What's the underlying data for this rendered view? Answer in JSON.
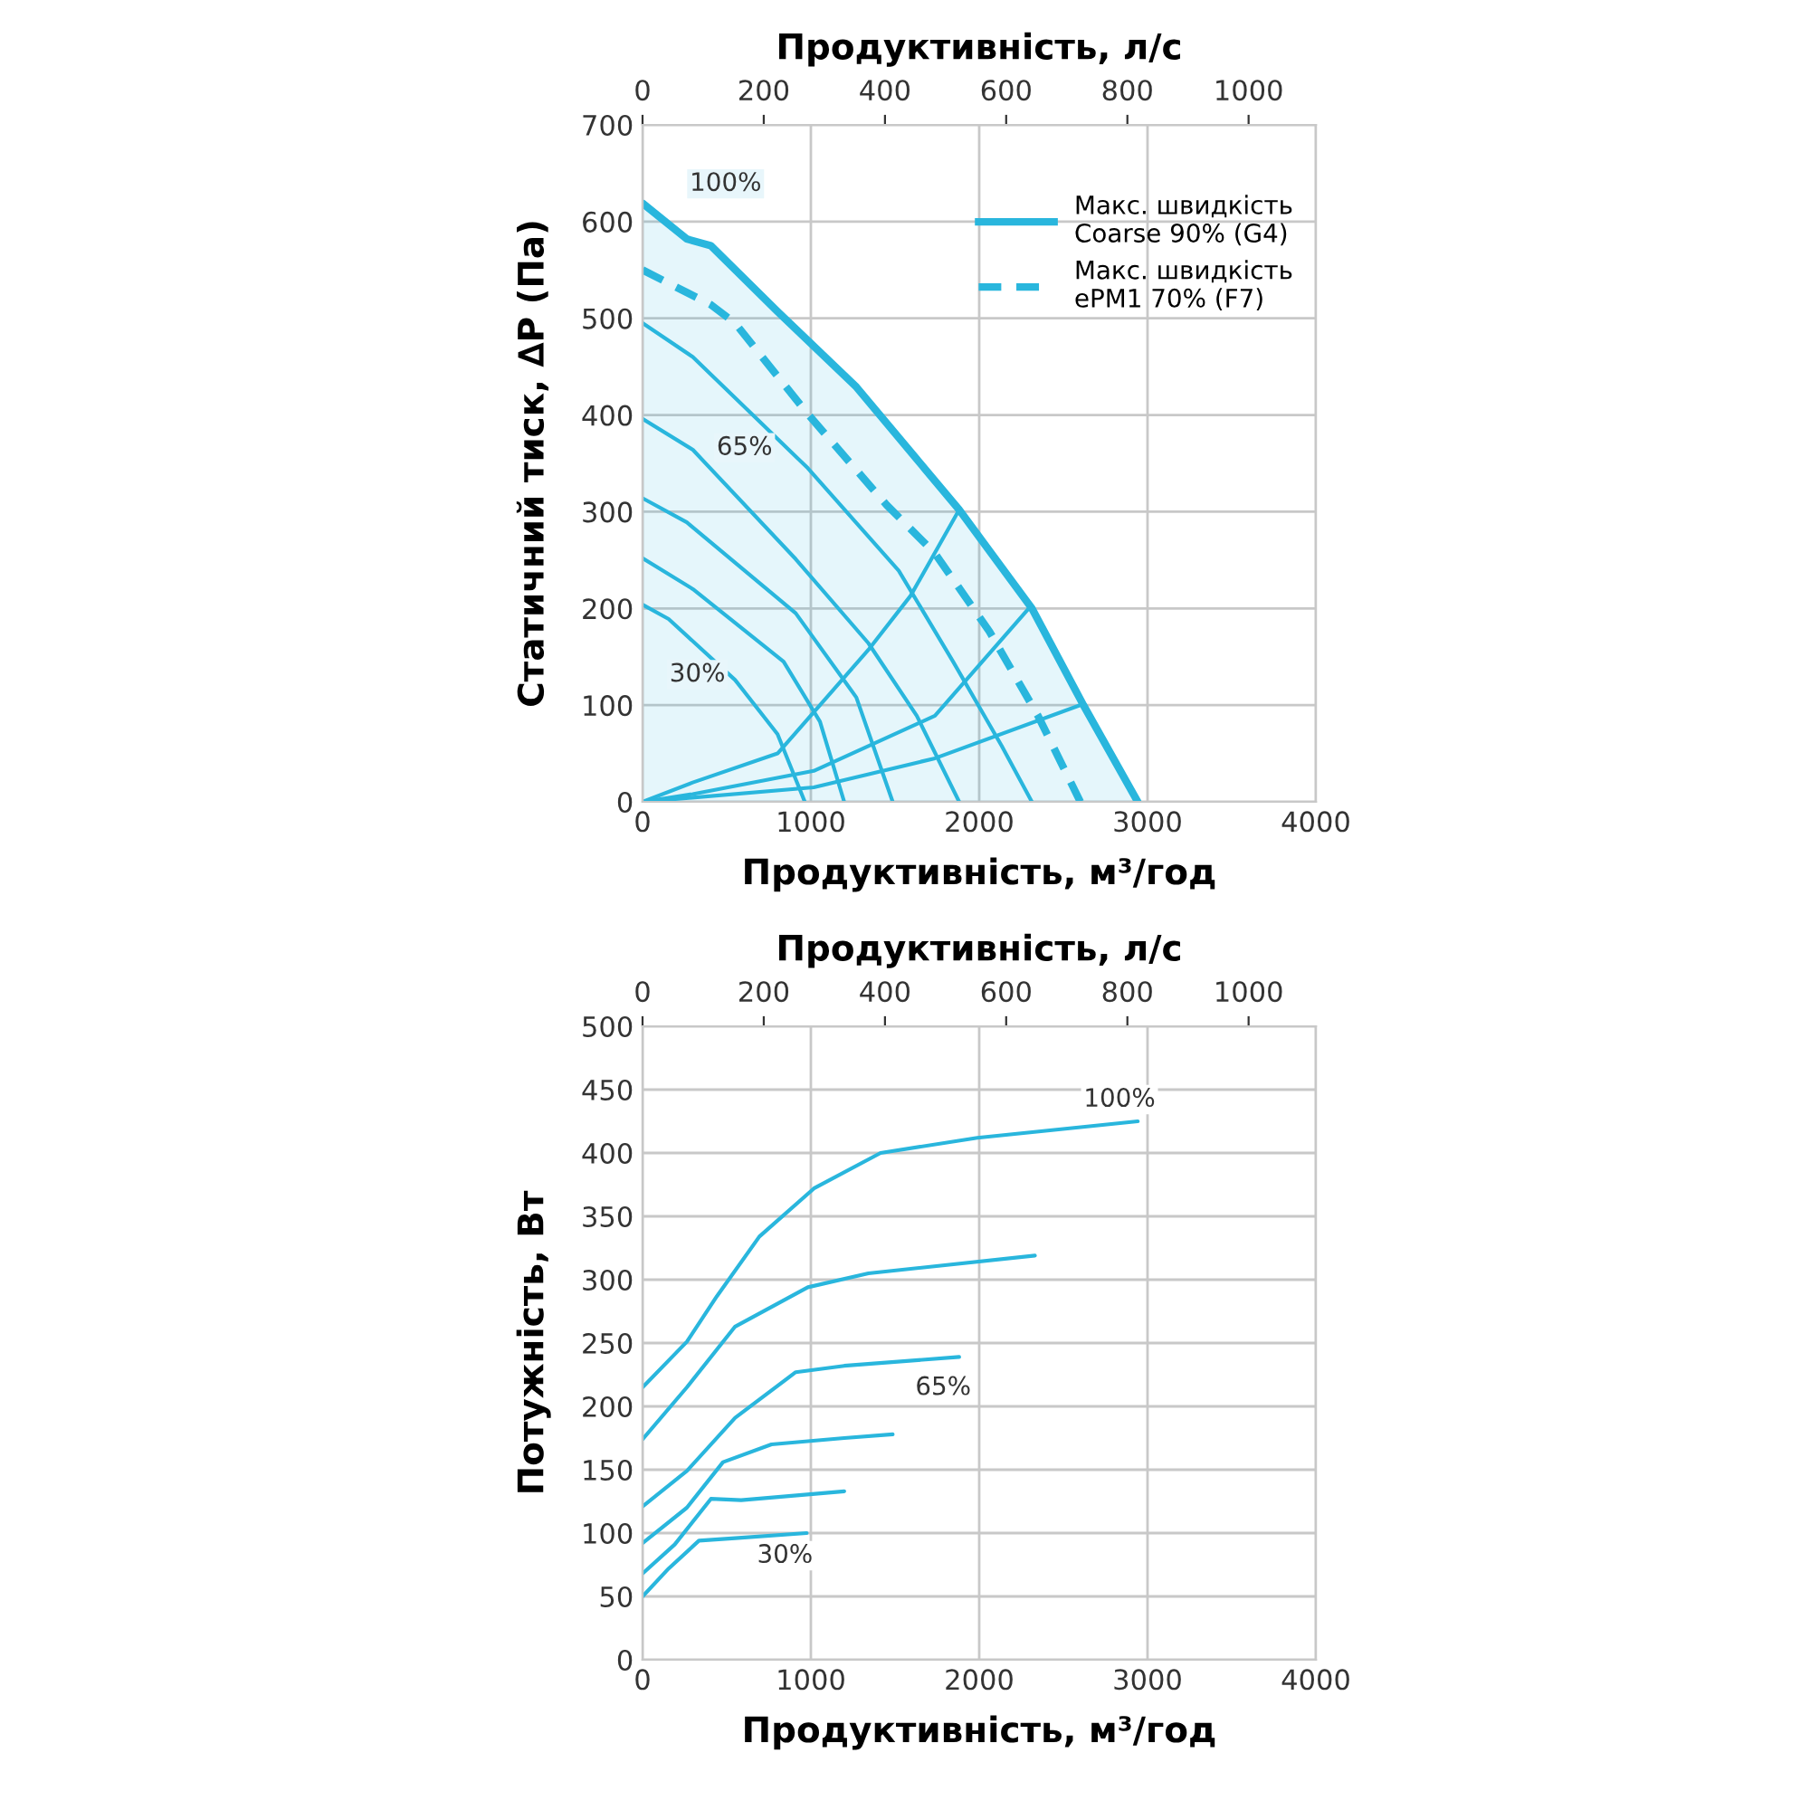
{
  "chart_data": [
    {
      "type": "line",
      "xlabel": "Продуктивність, м³/год",
      "x2label": "Продуктивність, л/с",
      "ylabel": "Статичний тиск, ∆P (Па)",
      "xlim": [
        0,
        4000
      ],
      "xticks": [
        0,
        1000,
        2000,
        3000,
        4000
      ],
      "ylim": [
        0,
        700
      ],
      "yticks": [
        0,
        100,
        200,
        300,
        400,
        500,
        600,
        700
      ],
      "x2lim": [
        0,
        1111
      ],
      "x2ticks": [
        0,
        200,
        400,
        600,
        800,
        1000
      ],
      "grid": true,
      "legend": "top right",
      "marker": "none",
      "series": [
        {
          "name": "Макс. швидкість\nCoarse 90% (G4)",
          "type": "area",
          "color": "#29b6dd",
          "line_style": "solid",
          "x": [
            0,
            263,
            406,
            802,
            1270,
            1881,
            2313,
            2619,
            2942
          ],
          "values": [
            619,
            582,
            575,
            507,
            429,
            302,
            200,
            100,
            0
          ]
        },
        {
          "name": "Макс. швидкість\nePM1 70% (F7)",
          "color": "#29b6dd",
          "line_style": "dashed",
          "x": [
            0,
            406,
            550,
            982,
            1450,
            1737,
            2061,
            2349,
            2601
          ],
          "values": [
            550,
            514,
            495,
            401,
            307,
            257,
            176,
            89,
            0
          ]
        },
        {
          "color": "#29b6dd",
          "x": [
            0,
            299,
            982,
            1522,
            1845,
            2133,
            2313
          ],
          "values": [
            495,
            460,
            345,
            239,
            145,
            58,
            0
          ]
        },
        {
          "color": "#29b6dd",
          "x": [
            0,
            299,
            910,
            1342,
            1629,
            1881
          ],
          "values": [
            396,
            364,
            251,
            164,
            89,
            0
          ]
        },
        {
          "color": "#29b6dd",
          "x": [
            0,
            263,
            910,
            1270,
            1486
          ],
          "values": [
            314,
            289,
            195,
            108,
            0
          ]
        },
        {
          "color": "#29b6dd",
          "x": [
            0,
            299,
            838,
            1054,
            1198
          ],
          "values": [
            252,
            220,
            145,
            83,
            0
          ]
        },
        {
          "color": "#29b6dd",
          "x": [
            0,
            155,
            550,
            802,
            964
          ],
          "values": [
            204,
            189,
            126,
            70,
            0
          ]
        },
        {
          "color": "#29b6dd",
          "x": [
            0,
            298,
            802,
            1341,
            1592,
            1881
          ],
          "values": [
            0,
            20,
            50,
            157,
            213,
            302
          ]
        },
        {
          "color": "#29b6dd",
          "x": [
            0,
            298,
            1017,
            1737,
            2294
          ],
          "values": [
            0,
            8,
            32,
            89,
            200
          ]
        },
        {
          "color": "#29b6dd",
          "x": [
            0,
            1017,
            1737,
            2617
          ],
          "values": [
            0,
            15,
            45,
            101
          ]
        }
      ],
      "annotations": [
        "100%",
        "65%",
        "30%"
      ]
    },
    {
      "type": "line",
      "xlabel": "Продуктивність, м³/год",
      "x2label": "Продуктивність, л/с",
      "ylabel": "Потужність, Вт",
      "xlim": [
        0,
        4000
      ],
      "xticks": [
        0,
        1000,
        2000,
        3000,
        4000
      ],
      "ylim": [
        0,
        500
      ],
      "yticks": [
        0,
        50,
        100,
        150,
        200,
        250,
        300,
        350,
        400,
        450,
        500
      ],
      "x2lim": [
        0,
        1111
      ],
      "x2ticks": [
        0,
        200,
        400,
        600,
        800,
        1000
      ],
      "grid": true,
      "marker": "none",
      "series": [
        {
          "color": "#29b6dd",
          "x": [
            0,
            263,
            442,
            694,
            1018,
            1414,
            1989,
            2942
          ],
          "values": [
            215,
            251,
            287,
            334,
            372,
            400,
            412,
            425
          ]
        },
        {
          "color": "#29b6dd",
          "x": [
            0,
            263,
            550,
            982,
            1342,
            2331
          ],
          "values": [
            174,
            215,
            263,
            294,
            305,
            319
          ]
        },
        {
          "color": "#29b6dd",
          "x": [
            0,
            263,
            550,
            910,
            1198,
            1881
          ],
          "values": [
            121,
            149,
            191,
            227,
            232,
            239
          ]
        },
        {
          "color": "#29b6dd",
          "x": [
            0,
            263,
            478,
            766,
            1198,
            1486
          ],
          "values": [
            92,
            120,
            156,
            170,
            175,
            178
          ]
        },
        {
          "color": "#29b6dd",
          "x": [
            0,
            191,
            406,
            586,
            1198
          ],
          "values": [
            68,
            91,
            127,
            126,
            133
          ]
        },
        {
          "color": "#29b6dd",
          "x": [
            0,
            155,
            335,
            550,
            975
          ],
          "values": [
            50,
            72,
            94,
            96,
            100
          ]
        }
      ],
      "annotations": [
        "100%",
        "65%",
        "30%"
      ]
    }
  ]
}
